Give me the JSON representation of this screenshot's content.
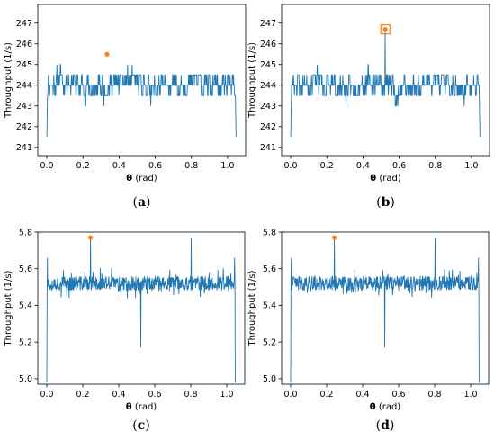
{
  "figure": {
    "ylabel": "Throughput (1/s)",
    "xlabel_symbol": "θ",
    "xlabel_unit": " (rad)"
  },
  "chart_data": [
    {
      "id": "a",
      "type": "line",
      "caption_letter": "a",
      "xlabel": "θ (rad)",
      "ylabel": "Throughput (1/s)",
      "xlim": [
        -0.05,
        1.1
      ],
      "ylim": [
        240.6,
        247.9
      ],
      "xticks": [
        0.0,
        0.2,
        0.4,
        0.6,
        0.8,
        1.0
      ],
      "xtick_labels": [
        "0.0",
        "0.2",
        "0.4",
        "0.6",
        "0.8",
        "1.0"
      ],
      "yticks": [
        241,
        242,
        243,
        244,
        245,
        246,
        247
      ],
      "ytick_labels": [
        "241",
        "242",
        "243",
        "244",
        "245",
        "246",
        "247"
      ],
      "base": 244,
      "noise": 0.9,
      "edges": [
        241.5,
        241.5
      ],
      "spikes": [],
      "marker": {
        "x": 0.333,
        "y": 245.5,
        "style": "dot"
      },
      "series_color": "#1f77b4",
      "marker_color": "#ff7f0e",
      "seed": 11
    },
    {
      "id": "b",
      "type": "line",
      "caption_letter": "b",
      "xlabel": "θ (rad)",
      "ylabel": "Throughput (1/s)",
      "xlim": [
        -0.05,
        1.1
      ],
      "ylim": [
        240.6,
        247.9
      ],
      "xticks": [
        0.0,
        0.2,
        0.4,
        0.6,
        0.8,
        1.0
      ],
      "xtick_labels": [
        "0.0",
        "0.2",
        "0.4",
        "0.6",
        "0.8",
        "1.0"
      ],
      "yticks": [
        241,
        242,
        243,
        244,
        245,
        246,
        247
      ],
      "ytick_labels": [
        "241",
        "242",
        "243",
        "244",
        "245",
        "246",
        "247"
      ],
      "base": 244,
      "noise": 0.9,
      "edges": [
        241.5,
        241.5
      ],
      "spikes": [
        {
          "x": 0.5236,
          "y": 246.7
        }
      ],
      "marker": {
        "x": 0.5236,
        "y": 246.7,
        "style": "boxed-dot"
      },
      "series_color": "#1f77b4",
      "marker_color": "#ff7f0e",
      "seed": 23
    },
    {
      "id": "c",
      "type": "line",
      "caption_letter": "c",
      "xlabel": "θ (rad)",
      "ylabel": "Throughput (1/s)",
      "xlim": [
        -0.05,
        1.1
      ],
      "ylim": [
        4.97,
        5.8
      ],
      "xticks": [
        0.0,
        0.2,
        0.4,
        0.6,
        0.8,
        1.0
      ],
      "xtick_labels": [
        "0.0",
        "0.2",
        "0.4",
        "0.6",
        "0.8",
        "1.0"
      ],
      "yticks": [
        5.0,
        5.2,
        5.4,
        5.6,
        5.8
      ],
      "ytick_labels": [
        "5.0",
        "5.2",
        "5.4",
        "5.6",
        "5.8"
      ],
      "base": 5.52,
      "noise": 0.04,
      "edges": [
        4.98,
        4.98
      ],
      "spikes": [
        {
          "x": 0.2432,
          "y": 5.77
        },
        {
          "x": 0.5236,
          "y": 5.17
        },
        {
          "x": 0.8029,
          "y": 5.77
        },
        {
          "x": 0.003,
          "y": 5.66
        },
        {
          "x": 1.044,
          "y": 5.66
        }
      ],
      "marker": {
        "x": 0.2432,
        "y": 5.77,
        "style": "dot"
      },
      "series_color": "#1f77b4",
      "marker_color": "#ff7f0e",
      "seed": 37
    },
    {
      "id": "d",
      "type": "line",
      "caption_letter": "d",
      "xlabel": "θ (rad)",
      "ylabel": "Throughput (1/s)",
      "xlim": [
        -0.05,
        1.1
      ],
      "ylim": [
        4.97,
        5.8
      ],
      "xticks": [
        0.0,
        0.2,
        0.4,
        0.6,
        0.8,
        1.0
      ],
      "xtick_labels": [
        "0.0",
        "0.2",
        "0.4",
        "0.6",
        "0.8",
        "1.0"
      ],
      "yticks": [
        5.0,
        5.2,
        5.4,
        5.6,
        5.8
      ],
      "ytick_labels": [
        "5.0",
        "5.2",
        "5.4",
        "5.6",
        "5.8"
      ],
      "base": 5.52,
      "noise": 0.04,
      "edges": [
        4.98,
        4.98
      ],
      "spikes": [
        {
          "x": 0.2432,
          "y": 5.77
        },
        {
          "x": 0.5236,
          "y": 5.17
        },
        {
          "x": 0.8029,
          "y": 5.77
        },
        {
          "x": 0.003,
          "y": 5.66
        },
        {
          "x": 1.044,
          "y": 5.66
        }
      ],
      "marker": {
        "x": 0.2432,
        "y": 5.77,
        "style": "dot"
      },
      "series_color": "#1f77b4",
      "marker_color": "#ff7f0e",
      "seed": 41
    }
  ]
}
